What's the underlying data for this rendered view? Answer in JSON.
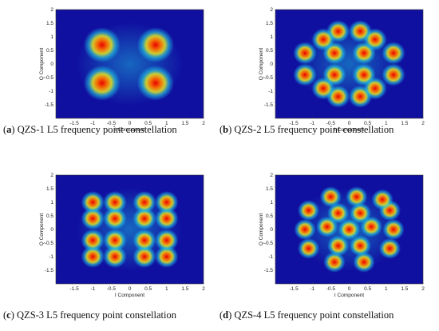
{
  "chart_data": [
    {
      "type": "scatter",
      "title": "",
      "caption_letter": "a",
      "caption_text": "QZS-1 L5 frequency point constellation",
      "xlabel": "I Component",
      "ylabel": "Q Component",
      "xlim": [
        -2,
        2
      ],
      "ylim": [
        2,
        -2
      ],
      "xticks": [
        "-1.5",
        "-1",
        "-0.5",
        "0",
        "0.5",
        "1",
        "1.5",
        "2"
      ],
      "yticks": [
        "-1.5",
        "-1",
        "-0.5",
        "0",
        "0.5",
        "1",
        "1.5",
        "2"
      ],
      "background": "#1010a0",
      "points": [
        [
          -0.75,
          -0.7
        ],
        [
          0.7,
          -0.7
        ],
        [
          -0.75,
          0.7
        ],
        [
          0.7,
          0.7
        ]
      ]
    },
    {
      "type": "scatter",
      "title": "",
      "caption_letter": "b",
      "caption_text": "QZS-2 L5 frequency point constellation",
      "xlabel": "I Component",
      "ylabel": "Q Component",
      "xlim": [
        -2,
        2
      ],
      "ylim": [
        2,
        -2
      ],
      "xticks": [
        "-1.5",
        "-1",
        "-0.5",
        "0",
        "0.5",
        "1",
        "1.5",
        "2"
      ],
      "yticks": [
        "-1.5",
        "-1",
        "-0.5",
        "0",
        "0.5",
        "1",
        "1.5",
        "2"
      ],
      "background": "#1010a0",
      "points": [
        [
          -0.3,
          -1.2
        ],
        [
          0.3,
          -1.2
        ],
        [
          -1.2,
          -0.4
        ],
        [
          -0.4,
          -0.4
        ],
        [
          0.4,
          -0.4
        ],
        [
          1.2,
          -0.4
        ],
        [
          -1.2,
          0.4
        ],
        [
          -0.4,
          0.4
        ],
        [
          0.4,
          0.4
        ],
        [
          1.2,
          0.4
        ],
        [
          -0.3,
          1.2
        ],
        [
          0.3,
          1.2
        ],
        [
          -0.7,
          -0.9
        ],
        [
          0.7,
          -0.9
        ],
        [
          -0.7,
          0.9
        ],
        [
          0.7,
          0.9
        ]
      ]
    },
    {
      "type": "scatter",
      "title": "",
      "caption_letter": "c",
      "caption_text": "QZS-3 L5 frequency point constellation",
      "xlabel": "I Component",
      "ylabel": "Q Component",
      "xlim": [
        -2,
        2
      ],
      "ylim": [
        2,
        -2
      ],
      "xticks": [
        "-1.5",
        "-1",
        "-0.5",
        "0",
        "0.5",
        "1",
        "1.5",
        "2"
      ],
      "yticks": [
        "-1.5",
        "-1",
        "-0.5",
        "0",
        "0.5",
        "1",
        "1.5",
        "2"
      ],
      "background": "#1010a0",
      "points": [
        [
          -1.0,
          -1.0
        ],
        [
          -0.4,
          -1.0
        ],
        [
          0.4,
          -1.0
        ],
        [
          1.0,
          -1.0
        ],
        [
          -1.0,
          -0.4
        ],
        [
          -0.4,
          -0.4
        ],
        [
          0.4,
          -0.4
        ],
        [
          1.0,
          -0.4
        ],
        [
          -1.0,
          0.4
        ],
        [
          -0.4,
          0.4
        ],
        [
          0.4,
          0.4
        ],
        [
          1.0,
          0.4
        ],
        [
          -1.0,
          1.0
        ],
        [
          -0.4,
          1.0
        ],
        [
          0.4,
          1.0
        ],
        [
          1.0,
          1.0
        ]
      ]
    },
    {
      "type": "scatter",
      "title": "",
      "caption_letter": "d",
      "caption_text": "QZS-4 L5 frequency point constellation",
      "xlabel": "I Component",
      "ylabel": "Q Component",
      "xlim": [
        -2,
        2
      ],
      "ylim": [
        2,
        -2
      ],
      "xticks": [
        "-1.5",
        "-1",
        "-0.5",
        "0",
        "0.5",
        "1",
        "1.5",
        "2"
      ],
      "yticks": [
        "-1.5",
        "-1",
        "-0.5",
        "0",
        "0.5",
        "1",
        "1.5",
        "2"
      ],
      "background": "#1010a0",
      "points": [
        [
          -0.4,
          -1.2
        ],
        [
          0.4,
          -1.2
        ],
        [
          -1.1,
          -0.7
        ],
        [
          -0.3,
          -0.6
        ],
        [
          0.3,
          -0.6
        ],
        [
          1.1,
          -0.7
        ],
        [
          -1.2,
          0.0
        ],
        [
          -0.6,
          0.1
        ],
        [
          0.0,
          0.0
        ],
        [
          0.6,
          0.1
        ],
        [
          1.2,
          0.0
        ],
        [
          -1.1,
          0.7
        ],
        [
          -0.3,
          0.6
        ],
        [
          0.3,
          0.6
        ],
        [
          1.1,
          0.7
        ],
        [
          -0.5,
          1.2
        ],
        [
          0.2,
          1.2
        ],
        [
          0.9,
          1.1
        ]
      ]
    }
  ],
  "colors": {
    "background": "#1010a0",
    "cloud": "#20d0e8",
    "mid": "#e8e820",
    "core": "#e80000"
  }
}
